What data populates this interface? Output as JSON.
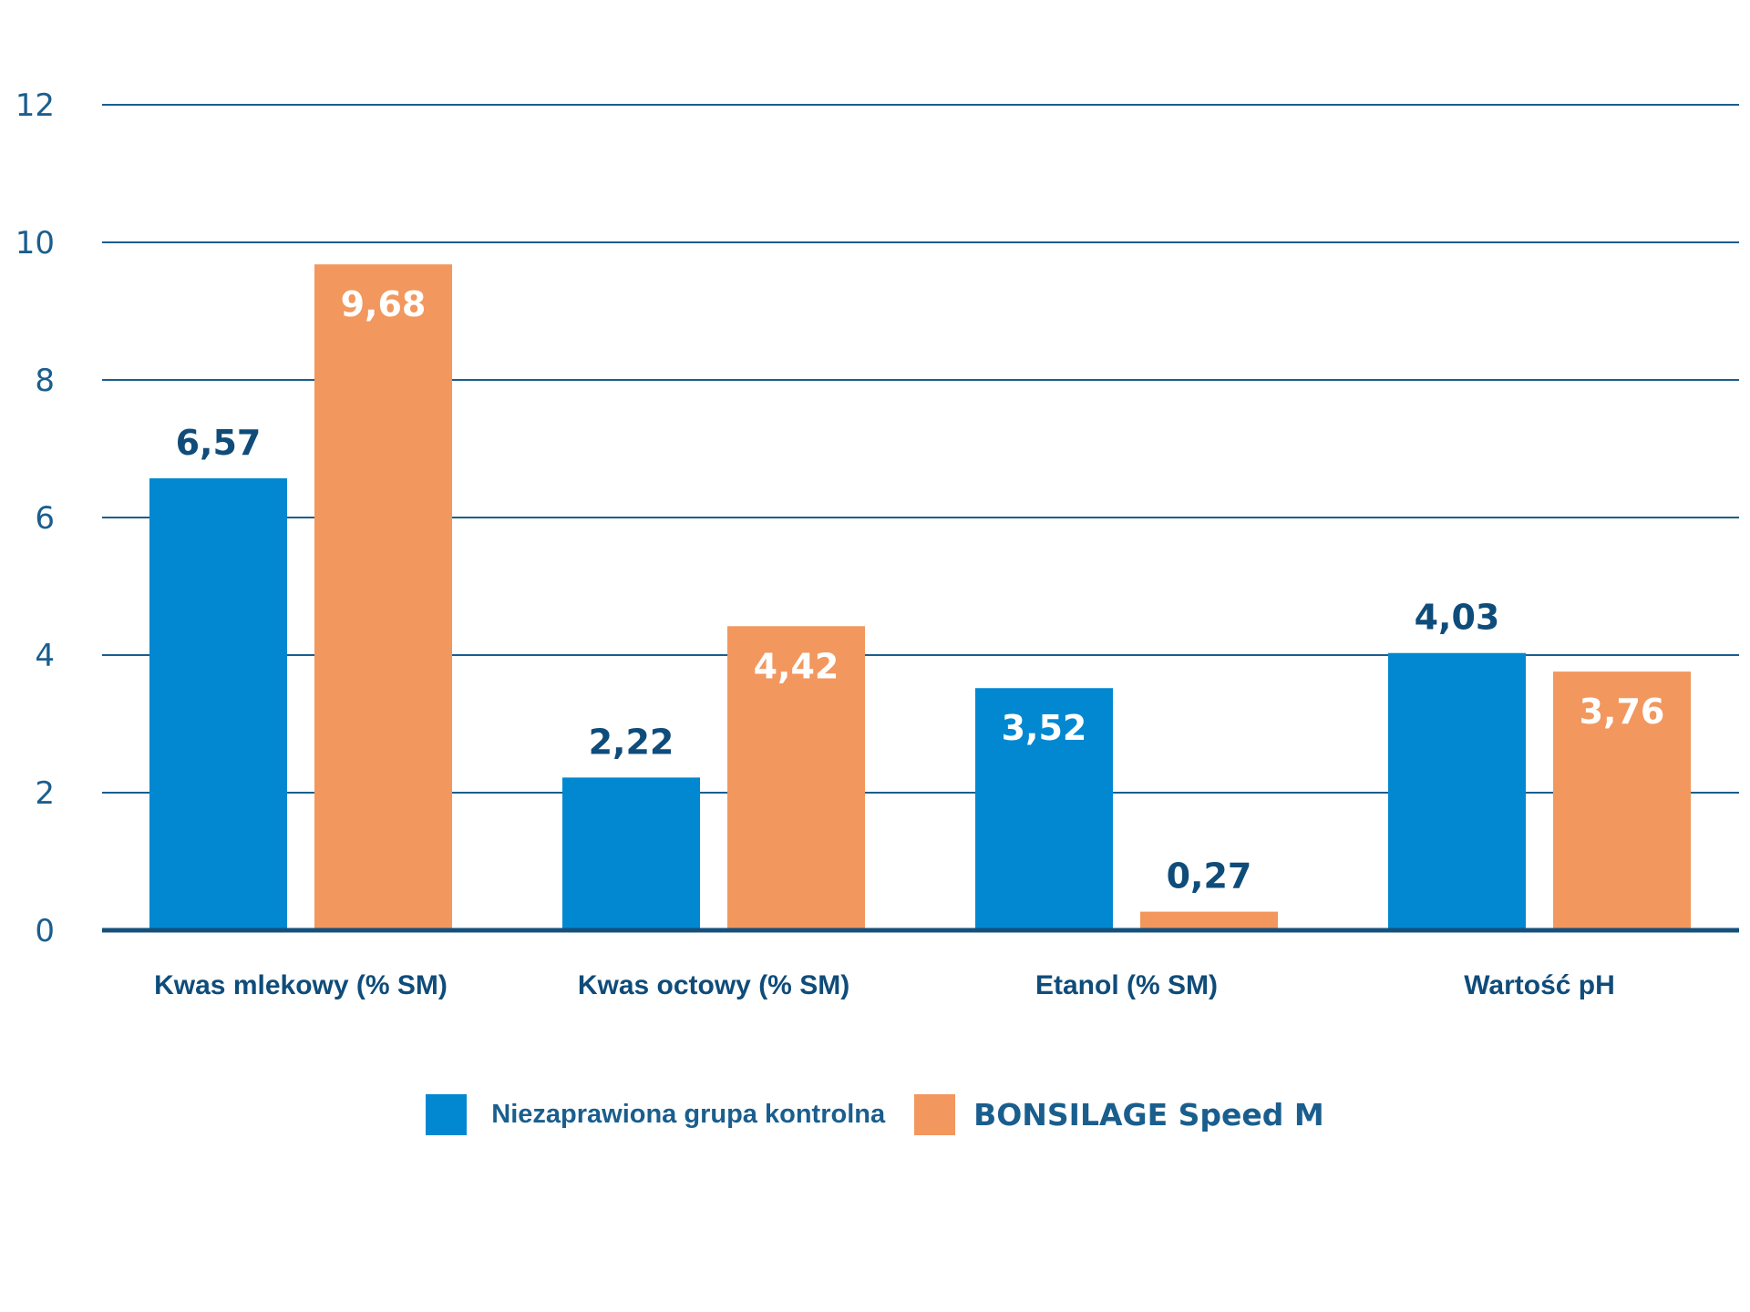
{
  "chart_data": {
    "type": "bar",
    "categories": [
      "Kwas mlekowy (% SM)",
      "Kwas octowy (% SM)",
      "Etanol (% SM)",
      "Wartość pH"
    ],
    "series": [
      {
        "name": "Niezaprawiona grupa kontrolna",
        "color": "#0288d1",
        "values": [
          6.57,
          2.22,
          3.52,
          4.03
        ],
        "value_labels": [
          "6,57",
          "2,22",
          "3,52",
          "4,03"
        ]
      },
      {
        "name": "BONSILAGE Speed M",
        "color": "#f2975e",
        "values": [
          9.68,
          4.42,
          0.27,
          3.76
        ],
        "value_labels": [
          "9,68",
          "4,42",
          "0,27",
          "3,76"
        ]
      }
    ],
    "yticks": [
      0,
      2,
      4,
      6,
      8,
      10,
      12
    ],
    "ylim": [
      0,
      12
    ],
    "grid": true,
    "legend_position": "bottom",
    "title": "",
    "xlabel": "",
    "ylabel": ""
  },
  "colors": {
    "axis_text": "#1a5e8e",
    "label_dark": "#0f4c7a",
    "gridline": "#1a5e8e",
    "baseline": "#15507c"
  }
}
